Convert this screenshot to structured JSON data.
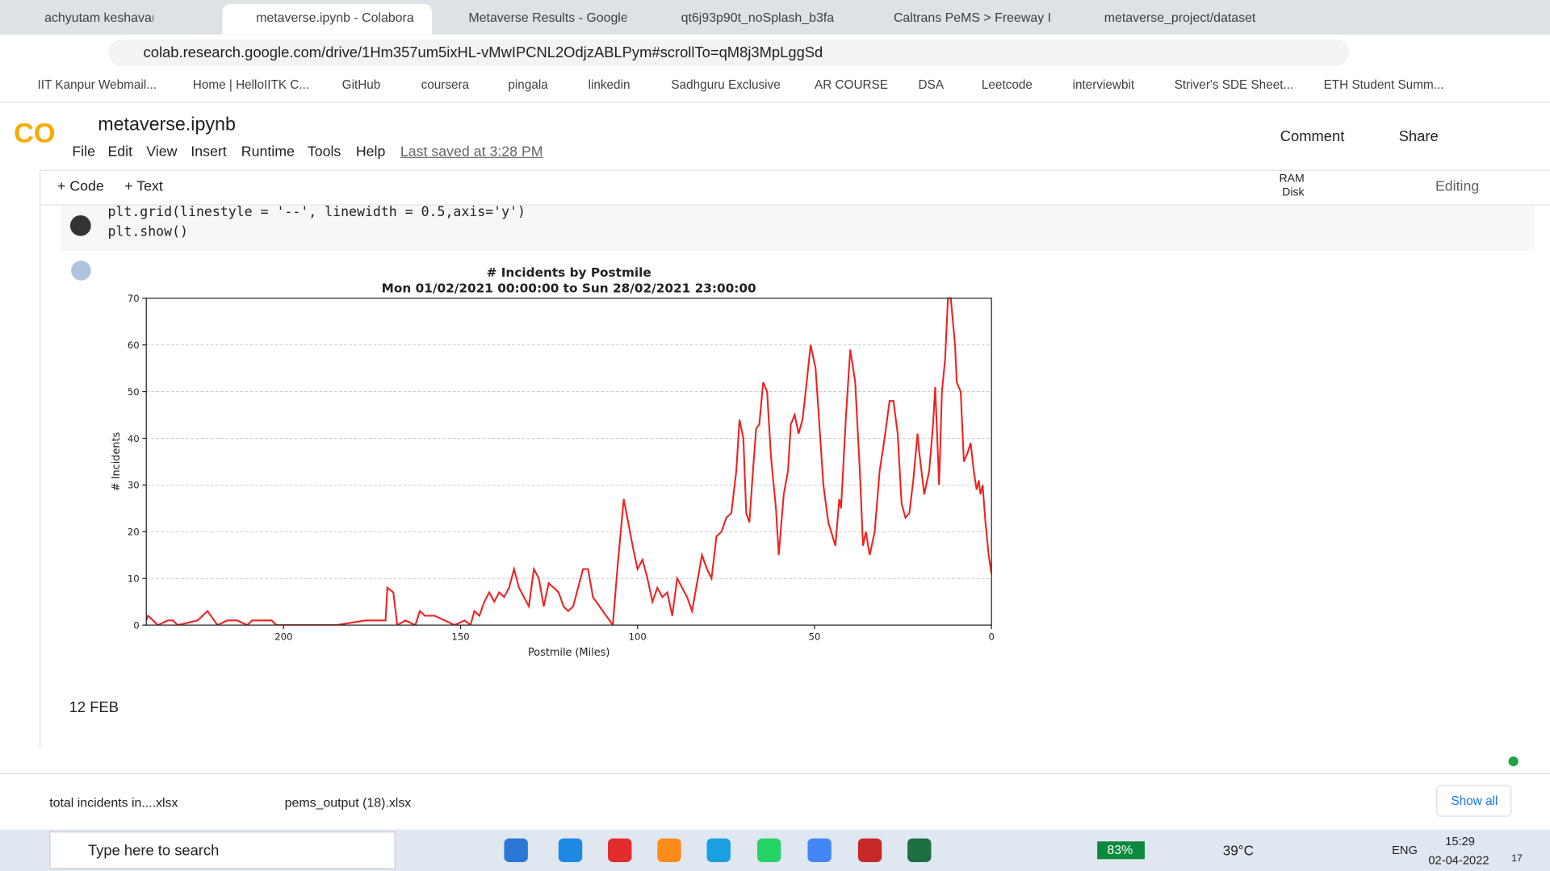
{
  "tabs": [
    "achyutam keshavam Kr",
    "metaverse.ipynb - Colabora",
    "Metaverse Results - Google",
    "qt6j93p90t_noSplash_b3fa",
    "Caltrans PeMS > Freeway I",
    "metaverse_project/dataset"
  ],
  "url": "colab.research.google.com/drive/1Hm357um5ixHL-vMwIPCNL2OdjzABLPym#scrollTo=qM8j3MpLggSd",
  "bookmarks": [
    "IIT Kanpur Webmail...",
    "Home | HelloIITK C...",
    "GitHub",
    "coursera",
    "pingala",
    "linkedin",
    "Sadhguru Exclusive",
    "AR COURSE",
    "DSA",
    "Leetcode",
    "interviewbit",
    "Striver's SDE Sheet...",
    "ETH Student Summ..."
  ],
  "notebook": {
    "name": "metaverse.ipynb",
    "menu": [
      "File",
      "Edit",
      "View",
      "Insert",
      "Runtime",
      "Tools",
      "Help"
    ],
    "last_saved": "Last saved at 3:28 PM",
    "comment": "Comment",
    "share": "Share",
    "toolbar": [
      "+ Code",
      "+ Text"
    ],
    "ram": "RAM",
    "disk": "Disk",
    "editing": "Editing",
    "code": [
      "plt.grid(linestyle = '--', linewidth = 0.5,axis='y')",
      "plt.show()"
    ],
    "markdown": "12 FEB"
  },
  "chart_data": {
    "type": "line",
    "title": "# Incidents by Postmile",
    "subtitle": "Mon 01/02/2021 00:00:00 to Sun 28/02/2021 23:00:00",
    "x_label": "Postmile (Miles)",
    "y_label": "# Incidents",
    "color": "#ee2222",
    "grid": true,
    "xlim": [
      238.8,
      0
    ],
    "xticks": [
      200,
      150,
      100,
      50,
      0
    ],
    "ylim": [
      0,
      70
    ],
    "yticks": [
      0,
      10,
      20,
      30,
      40,
      50,
      60,
      70
    ],
    "x": [
      238.8,
      238.3,
      236.9,
      235.5,
      232.7,
      231.3,
      229.9,
      224.3,
      221.5,
      218.7,
      215.9,
      213.1,
      210.3,
      208.9,
      203.4,
      202.0,
      185.2,
      176.8,
      171.2,
      170.7,
      169.0,
      167.9,
      165.6,
      162.8,
      161.5,
      160.1,
      157.3,
      154.5,
      151.7,
      148.9,
      147.2,
      146.1,
      144.7,
      143.3,
      141.9,
      140.5,
      139.1,
      137.7,
      136.3,
      134.9,
      133.5,
      132.1,
      130.7,
      129.3,
      127.9,
      126.5,
      125.1,
      123.7,
      122.3,
      120.9,
      119.6,
      118.2,
      115.4,
      114.0,
      112.6,
      109.8,
      107.0,
      105.6,
      103.9,
      101.4,
      100.0,
      98.6,
      97.2,
      95.8,
      94.4,
      93.0,
      91.6,
      90.2,
      88.8,
      87.4,
      86.0,
      84.6,
      83.2,
      81.8,
      80.4,
      79.1,
      77.7,
      76.3,
      74.9,
      73.5,
      72.1,
      71.2,
      70.1,
      69.3,
      68.4,
      67.3,
      66.5,
      65.6,
      64.5,
      63.4,
      62.3,
      60.9,
      60.1,
      58.7,
      57.5,
      56.7,
      55.6,
      54.5,
      53.4,
      52.5,
      51.1,
      49.7,
      48.9,
      47.5,
      46.1,
      44.1,
      43.0,
      42.5,
      41.1,
      39.9,
      38.5,
      37.2,
      36.3,
      35.5,
      34.4,
      33.0,
      31.6,
      30.2,
      28.8,
      27.7,
      26.5,
      25.4,
      24.3,
      23.2,
      22.1,
      20.9,
      20.4,
      19.0,
      17.6,
      16.5,
      15.9,
      14.8,
      14.0,
      13.1,
      12.3,
      11.5,
      10.3,
      9.8,
      8.7,
      7.8,
      6.7,
      5.9,
      5.0,
      4.2,
      3.6,
      3.1,
      2.5,
      1.7,
      0.8,
      0.0
    ],
    "values": [
      1,
      2,
      1,
      0,
      1,
      1,
      0,
      1,
      3,
      0,
      1,
      1,
      0,
      1,
      1,
      0,
      0,
      1,
      1,
      8,
      7,
      0,
      1,
      0,
      3,
      2,
      2,
      1,
      0,
      1,
      0,
      3,
      2,
      5,
      7,
      5,
      7,
      6,
      8,
      12,
      8,
      6,
      4,
      12,
      10,
      4,
      9,
      8,
      7,
      4,
      3,
      4,
      12,
      12,
      6,
      3,
      0,
      13,
      27,
      17,
      12,
      14,
      10,
      5,
      8,
      6,
      7,
      2,
      10,
      8,
      6,
      3,
      9,
      15,
      12,
      10,
      19,
      20,
      23,
      24,
      33,
      44,
      40,
      24,
      22,
      34,
      42,
      43,
      52,
      50,
      36,
      25,
      15,
      28,
      33,
      43,
      45,
      41,
      44,
      50,
      60,
      55,
      46,
      30,
      22,
      17,
      27,
      25,
      45,
      59,
      52,
      33,
      17,
      20,
      15,
      20,
      33,
      40,
      48,
      48,
      41,
      26,
      23,
      24,
      31,
      41,
      37,
      28,
      33,
      43,
      51,
      30,
      50,
      57,
      70,
      70,
      60,
      52,
      50,
      35,
      37,
      39,
      33,
      29,
      31,
      28,
      30,
      22,
      15,
      11
    ]
  },
  "downloads": [
    "total incidents in....xlsx",
    "pems_output (18).xlsx"
  ],
  "show_all": "Show all",
  "taskbar": {
    "search": "Type here to search",
    "battery": "83%",
    "weather": "39°C",
    "lang": "ENG",
    "time": "15:29",
    "date": "02-04-2022",
    "notifications": "17"
  }
}
